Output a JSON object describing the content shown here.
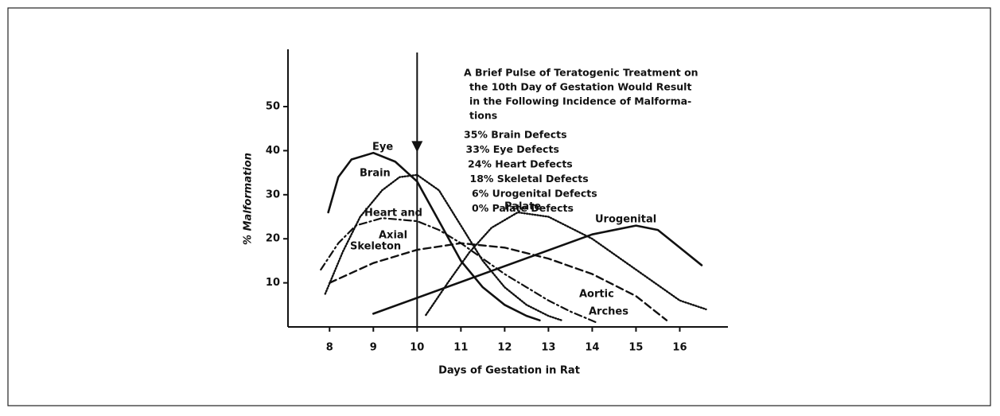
{
  "chart_data": {
    "type": "line",
    "x_label": "Days of Gestation in Rat",
    "y_label": "% Malformation",
    "xlim": [
      7.05,
      17.1
    ],
    "ylim": [
      0,
      63
    ],
    "xticks": [
      8,
      9,
      10,
      11,
      12,
      13,
      14,
      15,
      16
    ],
    "yticks": [
      10,
      20,
      30,
      40,
      50
    ],
    "color": "#111111",
    "marker_x": 10,
    "annotation": {
      "lines": [
        "A Brief Pulse of Teratogenic Treatment on",
        "the 10th Day of Gestation Would Result",
        "in the Following Incidence of Malforma-",
        "tions"
      ],
      "items": [
        "35% Brain Defects",
        "33% Eye Defects",
        "24% Heart Defects",
        "18% Skeletal Defects",
        "6% Urogenital Defects",
        "0% Palate Defects"
      ]
    },
    "series": [
      {
        "labels": [
          "Eye"
        ],
        "dash": "solid",
        "x": [
          7.97,
          8.2,
          8.5,
          9,
          9.5,
          10,
          10.5,
          11,
          11.5,
          12,
          12.5,
          12.8
        ],
        "values": [
          26,
          34,
          38,
          39.5,
          37.5,
          33,
          24,
          15,
          9,
          5,
          2.5,
          1.5
        ]
      },
      {
        "labels": [
          "Brain"
        ],
        "dash": "dotted",
        "x": [
          7.9,
          8.3,
          8.7,
          9.2,
          9.6,
          10,
          10.5,
          11,
          11.5,
          12,
          12.5,
          13,
          13.3
        ],
        "values": [
          7.5,
          17,
          25,
          31,
          34,
          34.5,
          31,
          23,
          15,
          9,
          5,
          2.5,
          1.5
        ]
      },
      {
        "labels": [
          "Heart and",
          "Aortic",
          "Arches"
        ],
        "dash": "dashdot",
        "x": [
          7.8,
          8.2,
          8.6,
          9.2,
          10,
          10.5,
          11,
          11.5,
          12,
          12.5,
          13,
          13.5,
          14.1
        ],
        "values": [
          13,
          19,
          23,
          24.7,
          24,
          22,
          19,
          15.5,
          12,
          9,
          6,
          3.5,
          1
        ]
      },
      {
        "labels": [
          "Axial",
          "Skeleton"
        ],
        "dash": "dashed",
        "x": [
          8,
          9,
          10,
          11,
          12,
          13,
          14,
          15,
          15.7
        ],
        "values": [
          10,
          14.5,
          17.5,
          19,
          18,
          15.5,
          12,
          7,
          1.5
        ]
      },
      {
        "labels": [
          "Palate"
        ],
        "dash": "dotted",
        "x": [
          10.2,
          10.7,
          11.2,
          11.7,
          12.3,
          13,
          14,
          15,
          16,
          16.6
        ],
        "values": [
          2.7,
          10,
          17,
          22.5,
          26,
          25,
          20,
          13,
          6,
          4
        ]
      },
      {
        "labels": [
          "Urogenital"
        ],
        "dash": "solid",
        "x": [
          9,
          14,
          15,
          15.5,
          16,
          16.5
        ],
        "values": [
          3,
          21,
          23,
          22,
          18,
          14
        ]
      }
    ]
  }
}
